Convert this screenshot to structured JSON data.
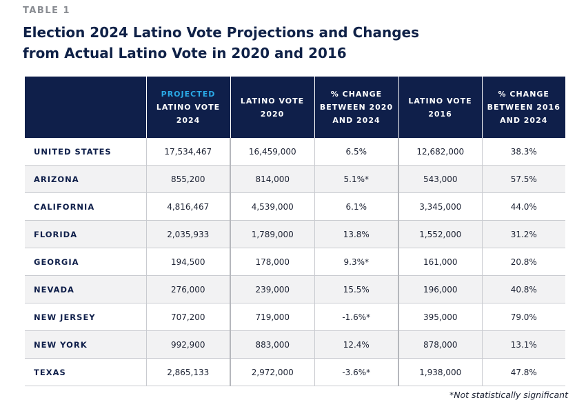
{
  "table_label": "TABLE 1",
  "title_line1": "Election 2024 Latino Vote Projections and Changes",
  "title_line2": "from Actual Latino Vote in 2020 and 2016",
  "headers": {
    "col1_line1": "PROJECTED",
    "col1_line2": "LATINO VOTE",
    "col1_line3": "2024",
    "col2_line1": "LATINO VOTE",
    "col2_line2": "2020",
    "col3_line1": "% CHANGE",
    "col3_line2": "BETWEEN 2020",
    "col3_line3": "AND 2024",
    "col4_line1": "LATINO VOTE",
    "col4_line2": "2016",
    "col5_line1": "% CHANGE",
    "col5_line2": "BETWEEN 2016",
    "col5_line3": "AND 2024"
  },
  "rows": [
    [
      "UNITED STATES",
      "17,534,467",
      "16,459,000",
      "6.5%",
      "12,682,000",
      "38.3%"
    ],
    [
      "ARIZONA",
      "855,200",
      "814,000",
      "5.1%*",
      "543,000",
      "57.5%"
    ],
    [
      "CALIFORNIA",
      "4,816,467",
      "4,539,000",
      "6.1%",
      "3,345,000",
      "44.0%"
    ],
    [
      "FLORIDA",
      "2,035,933",
      "1,789,000",
      "13.8%",
      "1,552,000",
      "31.2%"
    ],
    [
      "GEORGIA",
      "194,500",
      "178,000",
      "9.3%*",
      "161,000",
      "20.8%"
    ],
    [
      "NEVADA",
      "276,000",
      "239,000",
      "15.5%",
      "196,000",
      "40.8%"
    ],
    [
      "NEW JERSEY",
      "707,200",
      "719,000",
      "-1.6%*",
      "395,000",
      "79.0%"
    ],
    [
      "NEW YORK",
      "992,900",
      "883,000",
      "12.4%",
      "878,000",
      "13.1%"
    ],
    [
      "TEXAS",
      "2,865,133",
      "2,972,000",
      "-3.6%*",
      "1,938,000",
      "47.8%"
    ]
  ],
  "footnote": "*Not statistically significant",
  "colors": {
    "header_bg": "#0f1f4a",
    "highlight": "#2aa9e6",
    "title": "#0f2147",
    "zebra": "#f2f2f3"
  }
}
